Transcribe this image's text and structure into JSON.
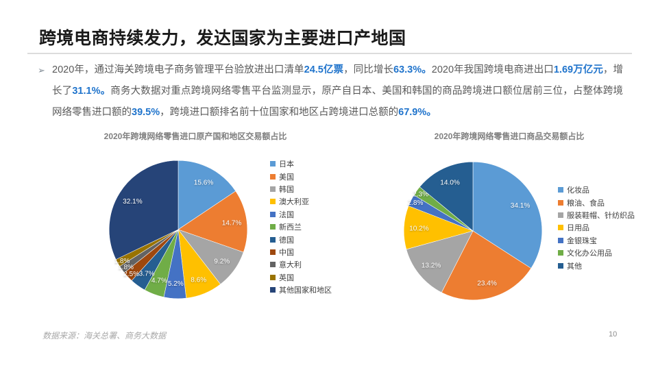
{
  "slide": {
    "title": "跨境电商持续发力，发达国家为主要进口产地国",
    "bullet_char": "➢",
    "paragraph_segments": [
      {
        "t": "2020年，通过海关跨境电子商务管理平台验放进出口清单",
        "h": false
      },
      {
        "t": "24.5亿票",
        "h": true
      },
      {
        "t": "，同比增长",
        "h": false
      },
      {
        "t": "63.3%。",
        "h": true
      },
      {
        "t": "2020年我国跨境电商进出口",
        "h": false
      },
      {
        "t": "1.69万亿元",
        "h": true
      },
      {
        "t": "，增长了",
        "h": false
      },
      {
        "t": "31.1%。",
        "h": true
      },
      {
        "t": "商务大数据对重点跨境网络零售平台监测显示，原产自日本、美国和韩国的商品跨境进口额位居前三位，占整体跨境网络零售进口额的",
        "h": false
      },
      {
        "t": "39.5%",
        "h": true
      },
      {
        "t": "，跨境进口额排名前十位国家和地区占跨境进口总额的",
        "h": false
      },
      {
        "t": "67.9%。",
        "h": true
      }
    ],
    "highlight_color": "#2074CC",
    "footer": "数据来源：海关总署、商务大数据",
    "page_number": "10"
  },
  "chart_data": [
    {
      "type": "pie",
      "title": "2020年跨境网络零售进口原产国和地区交易额占比",
      "categories": [
        "日本",
        "美国",
        "韩国",
        "澳大利亚",
        "法国",
        "新西兰",
        "德国",
        "中国",
        "意大利",
        "英国",
        "其他国家和地区"
      ],
      "values": [
        15.6,
        14.7,
        9.2,
        8.6,
        5.2,
        4.7,
        3.7,
        2.5,
        1.8,
        1.8,
        32.1
      ],
      "unit": "%",
      "label_format": "percent",
      "start_angle_deg": 0,
      "direction": "clockwise",
      "legend_position": "right",
      "colors": [
        "#5B9BD5",
        "#ED7D31",
        "#A5A5A5",
        "#FFC000",
        "#4472C4",
        "#70AD47",
        "#255E91",
        "#9E480E",
        "#636363",
        "#997300",
        "#264478"
      ]
    },
    {
      "type": "pie",
      "title": "2020年跨境网络零售进口商品交易额占比",
      "categories": [
        "化妆品",
        "粮油、食品",
        "服装鞋帽、针纺织品",
        "日用品",
        "金银珠宝",
        "文化办公用品",
        "其他"
      ],
      "values": [
        34.1,
        23.4,
        13.2,
        10.2,
        2.8,
        2.3,
        14.0
      ],
      "unit": "%",
      "label_format": "percent",
      "start_angle_deg": 0,
      "direction": "clockwise",
      "legend_position": "right",
      "colors": [
        "#5B9BD5",
        "#ED7D31",
        "#A5A5A5",
        "#FFC000",
        "#4472C4",
        "#70AD47",
        "#255E91"
      ]
    }
  ]
}
